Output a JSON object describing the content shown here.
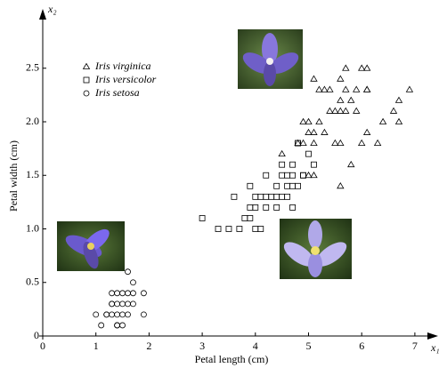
{
  "chart_data": {
    "type": "scatter",
    "xlabel": "Petal length (cm)",
    "ylabel": "Petal width (cm)",
    "x_axis_symbol": "x₁",
    "y_axis_symbol": "x₂",
    "xlim": [
      0,
      7.35
    ],
    "ylim": [
      0,
      3.0
    ],
    "xticks": [
      0,
      1,
      2,
      3,
      4,
      5,
      6,
      7
    ],
    "yticks": [
      0,
      0.5,
      {
        "value": 1,
        "label": "1.0"
      },
      {
        "value": 1.5,
        "label": "1.5"
      },
      {
        "value": 2,
        "label": "2.0"
      },
      {
        "value": 2.5,
        "label": "2.5"
      }
    ],
    "grid": false,
    "legend": "upper left",
    "series": [
      {
        "name": "Iris virginica",
        "color": "#000000",
        "marker": "triangle",
        "x": [
          6.0,
          5.1,
          5.9,
          5.6,
          5.8,
          6.6,
          4.5,
          6.3,
          6.1,
          5.3,
          5.5,
          5.0,
          5.1,
          6.7,
          6.9,
          5.0,
          5.7,
          4.9,
          6.7,
          4.9,
          5.7,
          6.0,
          4.8,
          5.6,
          5.8,
          6.1,
          6.4,
          5.6,
          5.1,
          5.6,
          6.1,
          5.6,
          5.4,
          5.9,
          5.7,
          5.2,
          5.0,
          5.2,
          5.4,
          5.1,
          6.1,
          5.3,
          5.5
        ],
        "values": [
          2.5,
          1.9,
          2.1,
          1.8,
          2.2,
          2.1,
          1.7,
          1.8,
          2.5,
          1.9,
          2.1,
          2.0,
          2.4,
          2.2,
          2.3,
          1.5,
          2.3,
          2.0,
          2.0,
          1.8,
          2.1,
          1.8,
          1.8,
          2.1,
          1.6,
          1.9,
          2.0,
          2.2,
          1.5,
          1.4,
          2.3,
          2.4,
          2.1,
          2.3,
          2.5,
          2.3,
          1.9,
          2.0,
          2.3,
          1.8,
          2.3,
          2.3,
          1.8
        ]
      },
      {
        "name": "Iris versicolor",
        "color": "#000000",
        "marker": "square",
        "x": [
          4.7,
          4.5,
          4.9,
          4.0,
          4.6,
          4.5,
          4.7,
          3.3,
          4.6,
          3.9,
          3.5,
          4.2,
          4.0,
          3.6,
          4.4,
          4.1,
          3.9,
          4.8,
          4.7,
          4.3,
          4.8,
          5.0,
          3.8,
          3.7,
          3.9,
          5.1,
          4.5,
          4.7,
          4.4,
          4.1,
          4.4,
          4.0,
          4.2,
          4.2,
          3.0,
          4.9,
          4.6,
          4.8
        ],
        "values": [
          1.4,
          1.5,
          1.5,
          1.3,
          1.5,
          1.3,
          1.6,
          1.0,
          1.3,
          1.4,
          1.0,
          1.5,
          1.0,
          1.3,
          1.4,
          1.0,
          1.1,
          1.8,
          1.2,
          1.3,
          1.4,
          1.7,
          1.1,
          1.0,
          1.2,
          1.6,
          1.6,
          1.5,
          1.3,
          1.3,
          1.2,
          1.2,
          1.3,
          1.2,
          1.1,
          1.5,
          1.4,
          1.8
        ]
      },
      {
        "name": "Iris setosa",
        "color": "#000000",
        "marker": "circle",
        "x": [
          1.4,
          1.3,
          1.5,
          1.7,
          1.4,
          1.5,
          1.4,
          1.1,
          1.2,
          1.3,
          1.7,
          1.5,
          1.0,
          1.7,
          1.9,
          1.6,
          1.6,
          1.5,
          1.3,
          1.9,
          1.6,
          1.4,
          1.6,
          1.2,
          1.3,
          1.4
        ],
        "values": [
          0.2,
          0.2,
          0.2,
          0.4,
          0.3,
          0.1,
          0.1,
          0.1,
          0.2,
          0.4,
          0.3,
          0.4,
          0.2,
          0.5,
          0.2,
          0.2,
          0.4,
          0.3,
          0.3,
          0.4,
          0.6,
          0.4,
          0.3,
          0.2,
          0.3,
          0.1
        ]
      }
    ]
  }
}
